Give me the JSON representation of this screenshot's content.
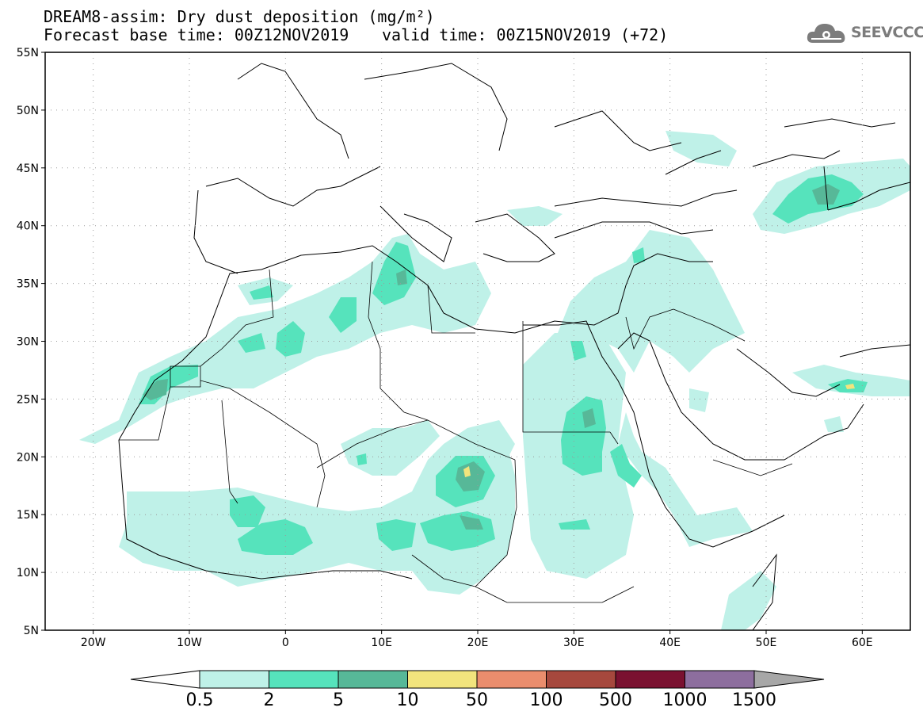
{
  "header": {
    "title_line1": "DREAM8-assim: Dry dust deposition (mg/m²)",
    "title_line2": "Forecast base time: 00Z12NOV2019",
    "valid_time": "valid time: 00Z15NOV2019 (+72)"
  },
  "logo": {
    "icon": "cloud-gear-icon",
    "text": "SEEVCCC"
  },
  "map": {
    "lat_labels": [
      "55N",
      "50N",
      "45N",
      "40N",
      "35N",
      "30N",
      "25N",
      "20N",
      "15N",
      "10N",
      "5N"
    ],
    "lon_labels": [
      "20W",
      "10W",
      "0",
      "10E",
      "20E",
      "30E",
      "40E",
      "50E",
      "60E"
    ]
  },
  "legend": {
    "labels": [
      "0.5",
      "2",
      "5",
      "10",
      "50",
      "100",
      "500",
      "1000",
      "1500"
    ],
    "colors": [
      "#bff1e8",
      "#56e3bc",
      "#57b898",
      "#f2e47d",
      "#ea8d6d",
      "#a6483d",
      "#7a1130",
      "#8d6e9e"
    ],
    "arrow_colors": {
      "low": "#ffffff",
      "high": "#a7a7a7"
    }
  },
  "colors": {
    "level1": "#bff1e8",
    "level2": "#56e3bc",
    "level3": "#57b898",
    "level4": "#f2e47d"
  }
}
